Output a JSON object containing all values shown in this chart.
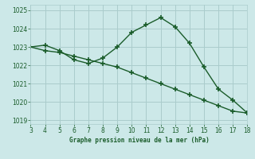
{
  "title": "Graphe pression niveau de la mer (hPa)",
  "bg_color": "#cce8e8",
  "grid_color": "#aacccc",
  "line_color": "#1a5c2a",
  "line1_x": [
    3,
    4,
    5,
    6,
    7,
    8,
    9,
    10,
    11,
    12,
    13,
    14,
    15,
    16,
    17,
    18
  ],
  "line1_y": [
    1023.0,
    1023.1,
    1022.8,
    1022.3,
    1022.1,
    1022.4,
    1023.0,
    1023.8,
    1024.2,
    1024.6,
    1024.1,
    1023.2,
    1021.9,
    1020.7,
    1020.1,
    1019.4
  ],
  "line2_x": [
    3,
    4,
    5,
    6,
    7,
    8,
    9,
    10,
    11,
    12,
    13,
    14,
    15,
    16,
    17,
    18
  ],
  "line2_y": [
    1023.0,
    1022.8,
    1022.7,
    1022.5,
    1022.3,
    1022.1,
    1021.9,
    1021.6,
    1021.3,
    1021.0,
    1020.7,
    1020.4,
    1020.1,
    1019.8,
    1019.5,
    1019.4
  ],
  "xlim": [
    3,
    18
  ],
  "ylim": [
    1018.8,
    1025.3
  ],
  "yticks": [
    1019,
    1020,
    1021,
    1022,
    1023,
    1024,
    1025
  ],
  "xticks": [
    3,
    4,
    5,
    6,
    7,
    8,
    9,
    10,
    11,
    12,
    13,
    14,
    15,
    16,
    17,
    18
  ]
}
